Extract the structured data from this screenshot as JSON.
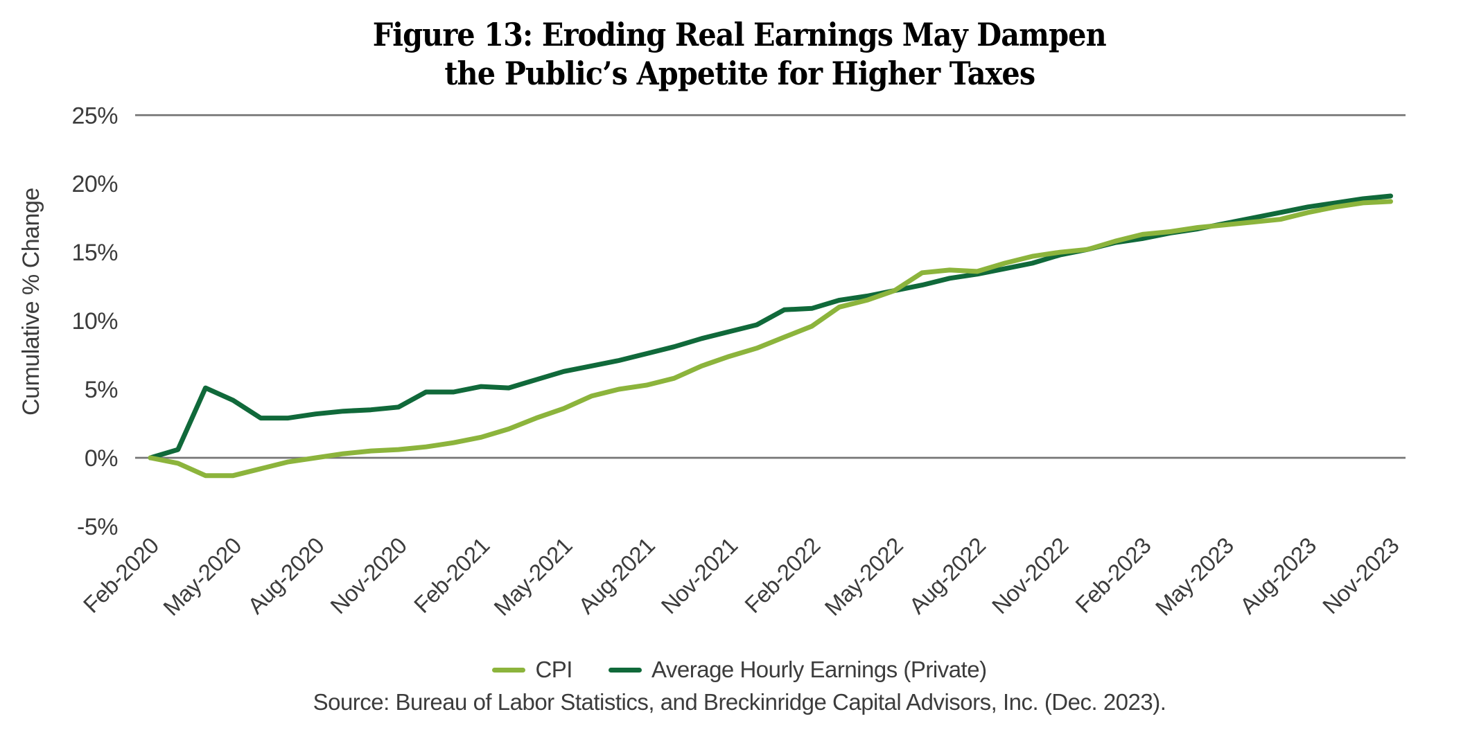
{
  "title": {
    "line1": "Figure 13: Eroding Real Earnings May Dampen",
    "line2": "the Public’s Appetite for Higher Taxes"
  },
  "source_text": "Source: Bureau of Labor Statistics, and Breckinridge Capital Advisors, Inc. (Dec. 2023).",
  "colors": {
    "cpi_green": "#8CB43C",
    "ahe_dark_green": "#10693A",
    "gridline_gray": "#757575",
    "axis_text_gray": "#3c3c3c"
  },
  "chart_data": {
    "type": "line",
    "title": "Figure 13: Eroding Real Earnings May Dampen the Public’s Appetite for Higher Taxes",
    "xlabel": "",
    "ylabel": "Cumulative % Change",
    "ylim": [
      -5,
      25
    ],
    "grid": "horizontal lines at 0% and 25% only",
    "legend_position": "bottom-center",
    "y_ticks": [
      25,
      20,
      15,
      10,
      5,
      0,
      -5
    ],
    "y_tick_suffix": "%",
    "gridlines_at": [
      25,
      0
    ],
    "x_tick_labels": [
      "Feb-2020",
      "May-2020",
      "Aug-2020",
      "Nov-2020",
      "Feb-2021",
      "May-2021",
      "Aug-2021",
      "Nov-2021",
      "Feb-2022",
      "May-2022",
      "Aug-2022",
      "Nov-2022",
      "Feb-2023",
      "May-2023",
      "Aug-2023",
      "Nov-2023"
    ],
    "x_tick_every_n_months": 3,
    "x": [
      "Feb-2020",
      "Mar-2020",
      "Apr-2020",
      "May-2020",
      "Jun-2020",
      "Jul-2020",
      "Aug-2020",
      "Sep-2020",
      "Oct-2020",
      "Nov-2020",
      "Dec-2020",
      "Jan-2021",
      "Feb-2021",
      "Mar-2021",
      "Apr-2021",
      "May-2021",
      "Jun-2021",
      "Jul-2021",
      "Aug-2021",
      "Sep-2021",
      "Oct-2021",
      "Nov-2021",
      "Dec-2021",
      "Jan-2022",
      "Feb-2022",
      "Mar-2022",
      "Apr-2022",
      "May-2022",
      "Jun-2022",
      "Jul-2022",
      "Aug-2022",
      "Sep-2022",
      "Oct-2022",
      "Nov-2022",
      "Dec-2022",
      "Jan-2023",
      "Feb-2023",
      "Mar-2023",
      "Apr-2023",
      "May-2023",
      "Jun-2023",
      "Jul-2023",
      "Aug-2023",
      "Sep-2023",
      "Oct-2023",
      "Nov-2023"
    ],
    "series": [
      {
        "name": "CPI",
        "color": "#8CB43C",
        "values": [
          0.0,
          -0.4,
          -1.3,
          -1.3,
          -0.8,
          -0.3,
          0.0,
          0.3,
          0.5,
          0.6,
          0.8,
          1.1,
          1.5,
          2.1,
          2.9,
          3.6,
          4.5,
          5.0,
          5.3,
          5.8,
          6.7,
          7.4,
          8.0,
          8.8,
          9.6,
          11.0,
          11.5,
          12.2,
          13.5,
          13.7,
          13.6,
          14.2,
          14.7,
          15.0,
          15.2,
          15.8,
          16.3,
          16.5,
          16.8,
          17.0,
          17.2,
          17.4,
          17.9,
          18.3,
          18.6,
          18.7
        ]
      },
      {
        "name": "Average Hourly Earnings (Private)",
        "color": "#10693A",
        "values": [
          0.0,
          0.6,
          5.1,
          4.2,
          2.9,
          2.9,
          3.2,
          3.4,
          3.5,
          3.7,
          4.8,
          4.8,
          5.2,
          5.1,
          5.7,
          6.3,
          6.7,
          7.1,
          7.6,
          8.1,
          8.7,
          9.2,
          9.7,
          10.8,
          10.9,
          11.5,
          11.8,
          12.2,
          12.6,
          13.1,
          13.4,
          13.8,
          14.2,
          14.8,
          15.2,
          15.7,
          16.0,
          16.4,
          16.7,
          17.1,
          17.5,
          17.9,
          18.3,
          18.6,
          18.9,
          19.1
        ]
      }
    ]
  },
  "legend": {
    "items": [
      {
        "label": "CPI"
      },
      {
        "label": "Average Hourly Earnings (Private)"
      }
    ]
  }
}
